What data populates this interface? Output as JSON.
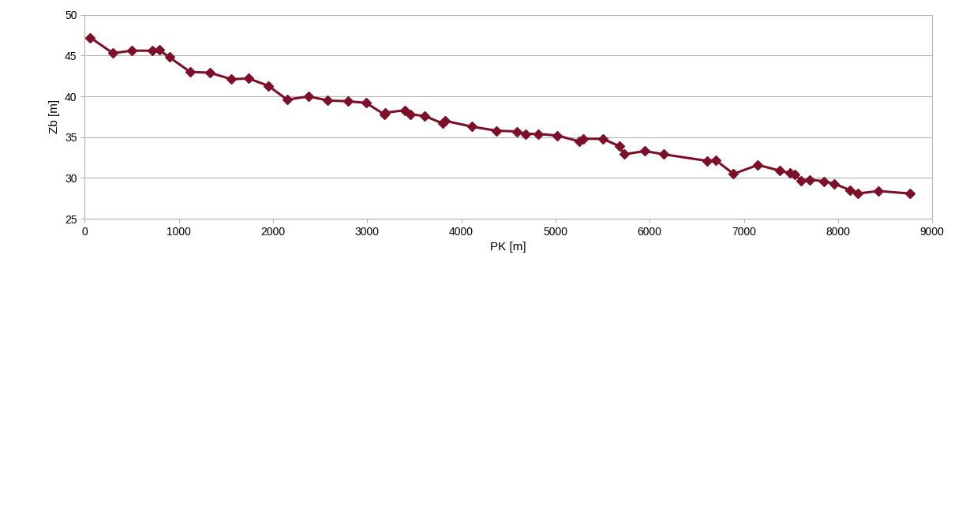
{
  "chart_data": {
    "type": "line",
    "x_label": "PK [m]",
    "y_label": "Zb [m]",
    "x": [
      60,
      300,
      500,
      720,
      790,
      900,
      1120,
      1330,
      1560,
      1740,
      1950,
      2150,
      2380,
      2580,
      2800,
      2990,
      3180,
      3190,
      3400,
      3460,
      3610,
      3800,
      3830,
      4110,
      4370,
      4590,
      4680,
      4820,
      5020,
      5250,
      5290,
      5500,
      5680,
      5730,
      5950,
      6150,
      6610,
      6700,
      6890,
      7150,
      7380,
      7490,
      7540,
      7610,
      7700,
      7850,
      7960,
      8130,
      8210,
      8430,
      8760
    ],
    "values": [
      47.2,
      45.3,
      45.6,
      45.6,
      45.7,
      44.8,
      43.0,
      42.9,
      42.1,
      42.2,
      41.3,
      39.6,
      40.0,
      39.5,
      39.4,
      39.2,
      37.8,
      38.0,
      38.3,
      37.8,
      37.6,
      36.7,
      37.0,
      36.3,
      35.8,
      35.7,
      35.4,
      35.4,
      35.2,
      34.5,
      34.8,
      34.8,
      33.9,
      32.9,
      33.3,
      32.9,
      32.1,
      32.2,
      30.5,
      31.6,
      30.9,
      30.6,
      30.4,
      29.7,
      29.8,
      29.6,
      29.3,
      28.5,
      28.1,
      28.4,
      28.1
    ],
    "color": "#7b1028",
    "marker": "diamond",
    "line_style": "solid",
    "xlim": [
      0,
      9000
    ],
    "xticks": [
      0,
      1000,
      2000,
      3000,
      4000,
      5000,
      6000,
      7000,
      8000,
      9000
    ],
    "ylim": [
      25,
      50
    ],
    "yticks": [
      25,
      30,
      35,
      40,
      45,
      50
    ],
    "grid": true
  }
}
